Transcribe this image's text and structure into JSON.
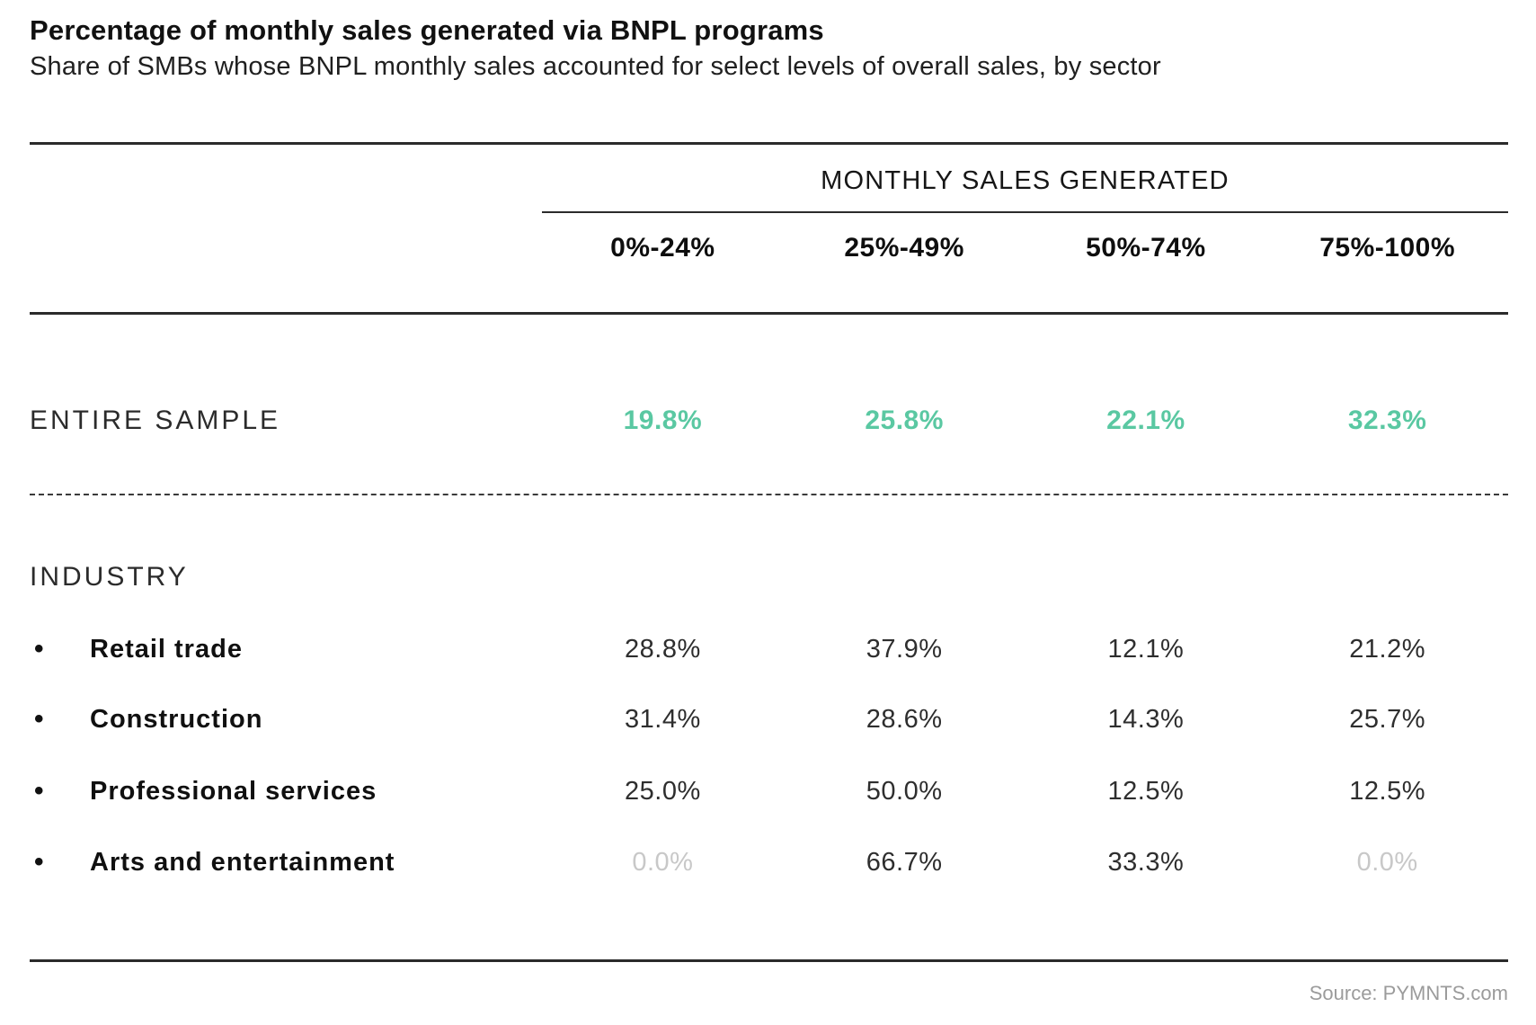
{
  "title": "Percentage of monthly sales generated via BNPL programs",
  "subtitle": "Share of SMBs whose BNPL monthly sales accounted for select levels of overall sales, by sector",
  "table": {
    "group_header": "MONTHLY SALES GENERATED",
    "columns": [
      "0%-24%",
      "25%-49%",
      "50%-74%",
      "75%-100%"
    ],
    "entire_sample": {
      "label": "ENTIRE SAMPLE",
      "values": [
        "19.8%",
        "25.8%",
        "22.1%",
        "32.3%"
      ]
    },
    "industry": {
      "label": "INDUSTRY",
      "bullet": "•",
      "rows": [
        {
          "label": "Retail trade",
          "values": [
            "28.8%",
            "37.9%",
            "12.1%",
            "21.2%"
          ],
          "muted": [
            false,
            false,
            false,
            false
          ]
        },
        {
          "label": "Construction",
          "values": [
            "31.4%",
            "28.6%",
            "14.3%",
            "25.7%"
          ],
          "muted": [
            false,
            false,
            false,
            false
          ]
        },
        {
          "label": "Professional services",
          "values": [
            "25.0%",
            "50.0%",
            "12.5%",
            "12.5%"
          ],
          "muted": [
            false,
            false,
            false,
            false
          ]
        },
        {
          "label": "Arts and entertainment",
          "values": [
            "0.0%",
            "66.7%",
            "33.3%",
            "0.0%"
          ],
          "muted": [
            true,
            false,
            false,
            true
          ]
        }
      ]
    }
  },
  "source": "Source: PYMNTS.com",
  "colors": {
    "accent-teal": "#5AC8A2",
    "muted-value": "#C8C8C8",
    "text": "#1A1A1A",
    "rule": "#2B2B2B",
    "source-gray": "#9B9B9B"
  },
  "chart_data": {
    "type": "table",
    "title": "Percentage of monthly sales generated via BNPL programs",
    "subtitle": "Share of SMBs whose BNPL monthly sales accounted for select levels of overall sales, by sector",
    "column_group": "MONTHLY SALES GENERATED",
    "columns": [
      "0%-24%",
      "25%-49%",
      "50%-74%",
      "75%-100%"
    ],
    "rows": [
      {
        "label": "ENTIRE SAMPLE",
        "section": "overall",
        "values_pct": [
          19.8,
          25.8,
          22.1,
          32.3
        ]
      },
      {
        "label": "Retail trade",
        "section": "INDUSTRY",
        "values_pct": [
          28.8,
          37.9,
          12.1,
          21.2
        ]
      },
      {
        "label": "Construction",
        "section": "INDUSTRY",
        "values_pct": [
          31.4,
          28.6,
          14.3,
          25.7
        ]
      },
      {
        "label": "Professional services",
        "section": "INDUSTRY",
        "values_pct": [
          25.0,
          50.0,
          12.5,
          12.5
        ]
      },
      {
        "label": "Arts and entertainment",
        "section": "INDUSTRY",
        "values_pct": [
          0.0,
          66.7,
          33.3,
          0.0
        ]
      }
    ],
    "source": "Source: PYMNTS.com"
  }
}
